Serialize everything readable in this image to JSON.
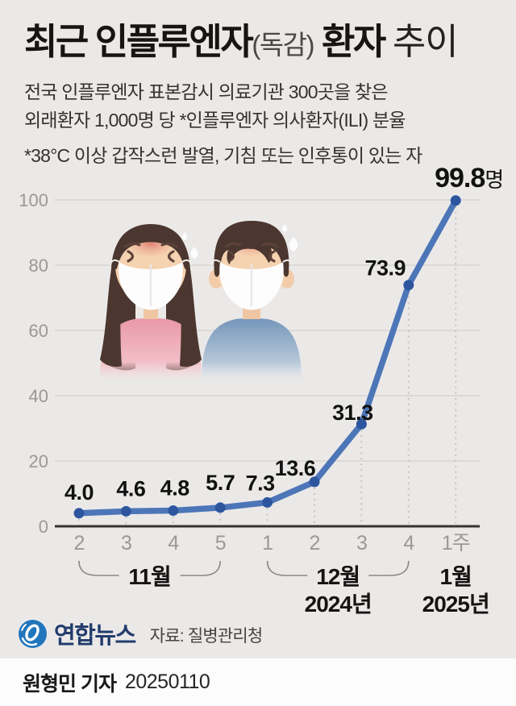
{
  "title": {
    "bold1": "최근 인플루엔자",
    "paren": "(독감)",
    "bold2": "환자",
    "light": "추이"
  },
  "subtitle": {
    "line1": "전국 인플루엔자 표본감시 의료기관 300곳을 찾은",
    "line2": "외래환자 1,000명 당 *인플루엔자 의사환자(ILI) 분율",
    "note": "*38°C 이상 갑작스런 발열, 기침 또는 인후통이 있는 자"
  },
  "chart_data": {
    "type": "line",
    "x": [
      "2",
      "3",
      "4",
      "5",
      "1",
      "2",
      "3",
      "4",
      "1주"
    ],
    "values": [
      4.0,
      4.6,
      4.8,
      5.7,
      7.3,
      13.6,
      31.3,
      73.9,
      99.8
    ],
    "value_labels": [
      "4.0",
      "4.6",
      "4.8",
      "5.7",
      "7.3",
      "13.6",
      "31.3",
      "73.9",
      "99.8"
    ],
    "last_value_unit": "명",
    "yticks": [
      0,
      20,
      40,
      60,
      80,
      100
    ],
    "ylim": [
      0,
      100
    ],
    "grid": true,
    "groups": [
      {
        "label": "11월",
        "from": 0,
        "to": 3
      },
      {
        "label": "12월",
        "year": "2024년",
        "from": 4,
        "to": 7
      },
      {
        "label": "1월",
        "year": "2025년",
        "from": 8,
        "to": 8
      }
    ],
    "line_color": "#4d76b8",
    "dot_color": "#2d569f",
    "grid_color": "#d3d1cf",
    "axis_color": "#363432",
    "tick_label_color": "#9b9896",
    "value_label_color": "#111110"
  },
  "footer": {
    "logo_text": "연합뉴스",
    "source": "자료: 질병관리청"
  },
  "credit": {
    "reporter": "원형민 기자",
    "date": "20250110"
  },
  "colors": {
    "background": "#ebe9e8",
    "credit_background": "#fcfcfc",
    "accent_blue": "#4d76b8",
    "logo_blue": "#2176bd",
    "logo_navy": "#223c6c"
  }
}
